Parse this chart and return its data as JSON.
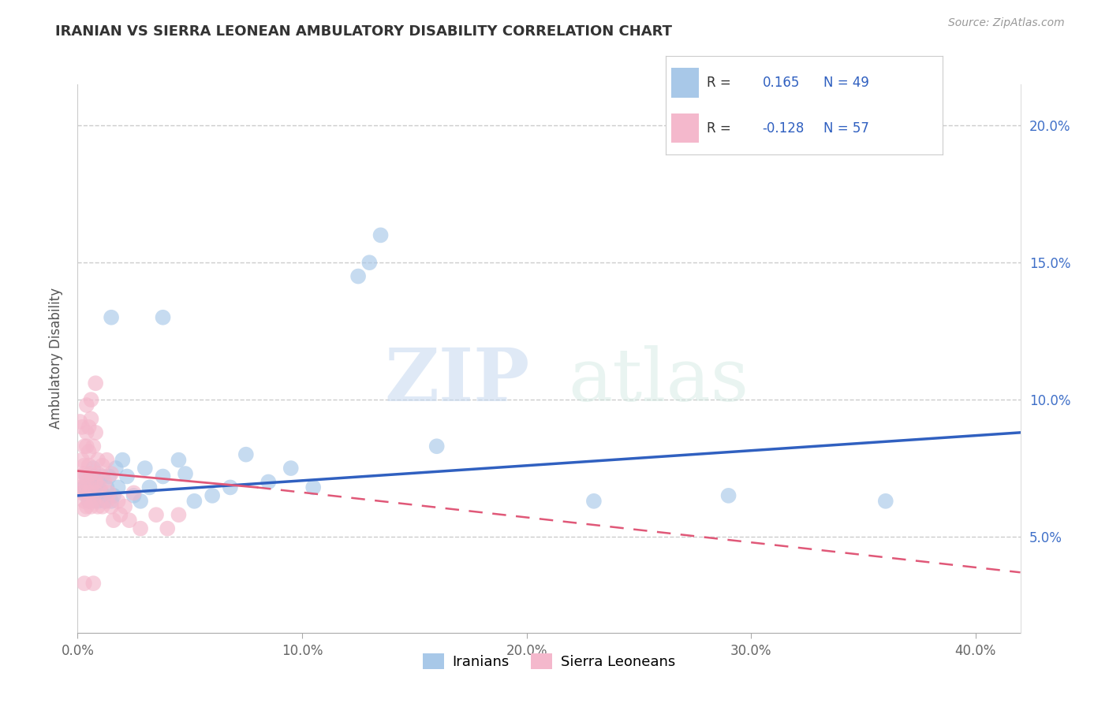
{
  "title": "IRANIAN VS SIERRA LEONEAN AMBULATORY DISABILITY CORRELATION CHART",
  "source": "Source: ZipAtlas.com",
  "xlim": [
    0.0,
    0.42
  ],
  "ylim": [
    0.015,
    0.215
  ],
  "ylabel": "Ambulatory Disability",
  "legend_labels": [
    "Iranians",
    "Sierra Leoneans"
  ],
  "R_iranian": 0.165,
  "N_iranian": 49,
  "R_sierra": -0.128,
  "N_sierra": 57,
  "color_iranian": "#a8c8e8",
  "color_sierra": "#f4b8cc",
  "line_color_iranian": "#3060c0",
  "line_color_sierra": "#e05878",
  "watermark_zip": "ZIP",
  "watermark_atlas": "atlas",
  "background_color": "#ffffff",
  "grid_color": "#cccccc",
  "ytick_color": "#4070c8",
  "xtick_color": "#666666",
  "iranian_points": [
    [
      0.003,
      0.068
    ],
    [
      0.004,
      0.065
    ],
    [
      0.004,
      0.072
    ],
    [
      0.005,
      0.063
    ],
    [
      0.005,
      0.068
    ],
    [
      0.006,
      0.07
    ],
    [
      0.006,
      0.065
    ],
    [
      0.007,
      0.072
    ],
    [
      0.007,
      0.075
    ],
    [
      0.008,
      0.064
    ],
    [
      0.008,
      0.068
    ],
    [
      0.009,
      0.063
    ],
    [
      0.009,
      0.07
    ],
    [
      0.01,
      0.067
    ],
    [
      0.01,
      0.065
    ],
    [
      0.011,
      0.072
    ],
    [
      0.012,
      0.065
    ],
    [
      0.012,
      0.063
    ],
    [
      0.013,
      0.068
    ],
    [
      0.014,
      0.072
    ],
    [
      0.015,
      0.063
    ],
    [
      0.016,
      0.065
    ],
    [
      0.017,
      0.075
    ],
    [
      0.018,
      0.068
    ],
    [
      0.02,
      0.078
    ],
    [
      0.022,
      0.072
    ],
    [
      0.025,
      0.065
    ],
    [
      0.028,
      0.063
    ],
    [
      0.03,
      0.075
    ],
    [
      0.032,
      0.068
    ],
    [
      0.038,
      0.072
    ],
    [
      0.045,
      0.078
    ],
    [
      0.048,
      0.073
    ],
    [
      0.052,
      0.063
    ],
    [
      0.06,
      0.065
    ],
    [
      0.068,
      0.068
    ],
    [
      0.075,
      0.08
    ],
    [
      0.085,
      0.07
    ],
    [
      0.095,
      0.075
    ],
    [
      0.015,
      0.13
    ],
    [
      0.105,
      0.068
    ],
    [
      0.125,
      0.145
    ],
    [
      0.13,
      0.15
    ],
    [
      0.135,
      0.16
    ],
    [
      0.16,
      0.083
    ],
    [
      0.23,
      0.063
    ],
    [
      0.29,
      0.065
    ],
    [
      0.36,
      0.063
    ],
    [
      0.038,
      0.13
    ]
  ],
  "sierra_points": [
    [
      0.001,
      0.092
    ],
    [
      0.001,
      0.068
    ],
    [
      0.002,
      0.09
    ],
    [
      0.002,
      0.078
    ],
    [
      0.002,
      0.072
    ],
    [
      0.002,
      0.066
    ],
    [
      0.003,
      0.083
    ],
    [
      0.003,
      0.063
    ],
    [
      0.003,
      0.076
    ],
    [
      0.003,
      0.06
    ],
    [
      0.003,
      0.073
    ],
    [
      0.003,
      0.068
    ],
    [
      0.004,
      0.088
    ],
    [
      0.004,
      0.061
    ],
    [
      0.004,
      0.083
    ],
    [
      0.004,
      0.098
    ],
    [
      0.004,
      0.07
    ],
    [
      0.005,
      0.063
    ],
    [
      0.005,
      0.076
    ],
    [
      0.005,
      0.09
    ],
    [
      0.005,
      0.066
    ],
    [
      0.005,
      0.081
    ],
    [
      0.006,
      0.061
    ],
    [
      0.006,
      0.073
    ],
    [
      0.006,
      0.093
    ],
    [
      0.006,
      0.068
    ],
    [
      0.007,
      0.063
    ],
    [
      0.007,
      0.083
    ],
    [
      0.008,
      0.07
    ],
    [
      0.008,
      0.088
    ],
    [
      0.008,
      0.066
    ],
    [
      0.009,
      0.078
    ],
    [
      0.009,
      0.061
    ],
    [
      0.009,
      0.073
    ],
    [
      0.01,
      0.068
    ],
    [
      0.011,
      0.076
    ],
    [
      0.011,
      0.061
    ],
    [
      0.012,
      0.07
    ],
    [
      0.013,
      0.063
    ],
    [
      0.013,
      0.078
    ],
    [
      0.014,
      0.066
    ],
    [
      0.015,
      0.061
    ],
    [
      0.015,
      0.073
    ],
    [
      0.016,
      0.056
    ],
    [
      0.018,
      0.063
    ],
    [
      0.019,
      0.058
    ],
    [
      0.021,
      0.061
    ],
    [
      0.023,
      0.056
    ],
    [
      0.025,
      0.066
    ],
    [
      0.028,
      0.053
    ],
    [
      0.035,
      0.058
    ],
    [
      0.04,
      0.053
    ],
    [
      0.045,
      0.058
    ],
    [
      0.006,
      0.1
    ],
    [
      0.008,
      0.106
    ],
    [
      0.003,
      0.033
    ],
    [
      0.007,
      0.033
    ]
  ]
}
